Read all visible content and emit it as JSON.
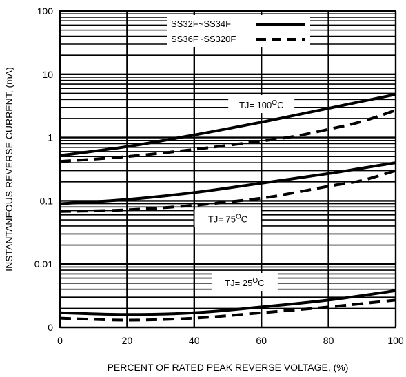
{
  "chart_data": {
    "type": "line",
    "title": "",
    "xlabel": "PERCENT OF RATED PEAK REVERSE VOLTAGE, (%)",
    "ylabel": "INSTANTANEOUS REVERSE CURRENT, (mA)",
    "x_scale": "linear",
    "y_scale": "log",
    "xlim": [
      0,
      100
    ],
    "ylim": [
      0.001,
      100
    ],
    "grid": true,
    "legend_position": "top-right",
    "x_ticks": [
      {
        "value": 0,
        "label": "0"
      },
      {
        "value": 20,
        "label": "20"
      },
      {
        "value": 40,
        "label": "40"
      },
      {
        "value": 60,
        "label": "60"
      },
      {
        "value": 80,
        "label": "80"
      },
      {
        "value": 100,
        "label": "100"
      }
    ],
    "y_ticks": [
      {
        "value": 0.001,
        "label": "0"
      },
      {
        "value": 0.01,
        "label": "0.01"
      },
      {
        "value": 0.1,
        "label": "0.1"
      },
      {
        "value": 1,
        "label": "1"
      },
      {
        "value": 10,
        "label": "10"
      },
      {
        "value": 100,
        "label": "100"
      }
    ],
    "legend": [
      {
        "label": "SS32F~SS34F",
        "style": "solid"
      },
      {
        "label": "SS36F~SS320F",
        "style": "dashed"
      }
    ],
    "series": [
      {
        "name": "SS32F~SS34F",
        "condition": "TJ= 100°C",
        "style": "solid",
        "x": [
          0,
          20,
          40,
          60,
          80,
          100
        ],
        "y": [
          0.52,
          0.72,
          1.1,
          1.75,
          2.9,
          4.8
        ]
      },
      {
        "name": "SS36F~SS320F",
        "condition": "TJ= 100°C",
        "style": "dashed",
        "x": [
          0,
          20,
          40,
          60,
          70,
          80,
          90,
          100
        ],
        "y": [
          0.42,
          0.5,
          0.65,
          0.88,
          1.05,
          1.35,
          1.8,
          2.7
        ]
      },
      {
        "name": "SS32F~SS34F",
        "condition": "TJ= 75°C",
        "style": "solid",
        "x": [
          0,
          20,
          40,
          60,
          80,
          100
        ],
        "y": [
          0.09,
          0.105,
          0.135,
          0.19,
          0.27,
          0.4
        ]
      },
      {
        "name": "SS36F~SS320F",
        "condition": "TJ= 75°C",
        "style": "dashed",
        "x": [
          0,
          20,
          40,
          60,
          70,
          80,
          90,
          100
        ],
        "y": [
          0.068,
          0.072,
          0.085,
          0.11,
          0.135,
          0.17,
          0.21,
          0.3
        ]
      },
      {
        "name": "SS32F~SS34F",
        "condition": "TJ= 25°C",
        "style": "solid",
        "x": [
          0,
          20,
          40,
          60,
          80,
          100
        ],
        "y": [
          0.0017,
          0.0016,
          0.0017,
          0.0021,
          0.0027,
          0.0038
        ]
      },
      {
        "name": "SS36F~SS320F",
        "condition": "TJ= 25°C",
        "style": "dashed",
        "x": [
          0,
          20,
          40,
          60,
          80,
          100
        ],
        "y": [
          0.0014,
          0.0013,
          0.0014,
          0.0017,
          0.0021,
          0.0027
        ]
      }
    ],
    "annotations": [
      {
        "base": "TJ= 100",
        "sup": "O",
        "tail": "C",
        "x": 60,
        "y": 3.3
      },
      {
        "base": "TJ= 75",
        "sup": "O",
        "tail": "C",
        "x": 50,
        "y": 0.052
      },
      {
        "base": "TJ= 25",
        "sup": "O",
        "tail": "C",
        "x": 55,
        "y": 0.0051
      }
    ]
  }
}
